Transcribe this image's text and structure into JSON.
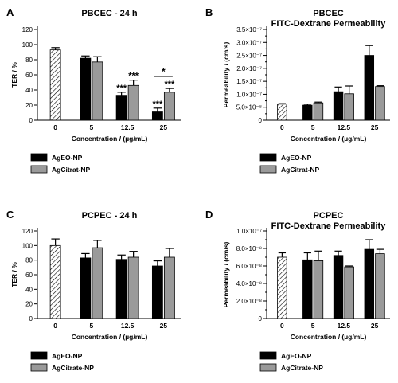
{
  "chart_data": [
    {
      "type": "bar",
      "panel": "A",
      "title": "PBCEC - 24 h",
      "title2": "",
      "xlabel": "Concentration / (µg/mL)",
      "ylabel": "TER / %",
      "ylim": [
        0,
        120
      ],
      "yticks": [
        "0",
        "20",
        "40",
        "60",
        "80",
        "100",
        "120"
      ],
      "categories": [
        "0",
        "5",
        "12.5",
        "25"
      ],
      "control": {
        "value": 93,
        "error": 3
      },
      "series": [
        {
          "name": "AgEO-NP",
          "color": "#000000",
          "values": [
            null,
            82,
            33,
            11
          ],
          "errors": [
            null,
            3,
            4,
            5
          ]
        },
        {
          "name": "AgCitrat-NP",
          "color": "#9a9a9a",
          "values": [
            null,
            77,
            46,
            37
          ],
          "errors": [
            null,
            7,
            7,
            5
          ]
        }
      ],
      "annotations": [
        {
          "text": "***",
          "category": "12.5",
          "series": 0
        },
        {
          "text": "***",
          "category": "12.5",
          "series": 1
        },
        {
          "text": "***",
          "category": "25",
          "series": 0
        },
        {
          "text": "***",
          "category": "25",
          "series": 1
        },
        {
          "text": "*",
          "category": "25",
          "bracket": true,
          "y": 58
        }
      ]
    },
    {
      "type": "bar",
      "panel": "B",
      "title": "PBCEC",
      "title2": "FITC-Dextrane Permeability",
      "xlabel": "Concentration / (µg/mL)",
      "ylabel": "Permeability / (cm/s)",
      "ylim": [
        0,
        3.5e-07
      ],
      "yticks": [
        "0",
        "5.0×10⁻⁸",
        "1.0×10⁻⁷",
        "1.5×10⁻⁷",
        "2.0×10⁻⁷",
        "2.5×10⁻⁷",
        "3.0×10⁻⁷",
        "3.5×10⁻⁷"
      ],
      "categories": [
        "0",
        "5",
        "12.5",
        "25"
      ],
      "control": {
        "value": 6.2e-08,
        "error": 2e-09
      },
      "series": [
        {
          "name": "AgEO-NP",
          "color": "#000000",
          "values": [
            null,
            5.8e-08,
            1.1e-07,
            2.5e-07
          ],
          "errors": [
            null,
            4e-09,
            1.8e-08,
            3.8e-08
          ]
        },
        {
          "name": "AgCitrat-NP",
          "color": "#9a9a9a",
          "values": [
            null,
            6.7e-08,
            1.02e-07,
            1.3e-07
          ],
          "errors": [
            null,
            3e-09,
            3e-08,
            3e-09
          ]
        }
      ],
      "annotations": []
    },
    {
      "type": "bar",
      "panel": "C",
      "title": "PCPEC - 24 h",
      "title2": "",
      "xlabel": "Concentration / (µg/mL)",
      "ylabel": "TER / %",
      "ylim": [
        0,
        120
      ],
      "yticks": [
        "0",
        "20",
        "40",
        "60",
        "80",
        "100",
        "120"
      ],
      "categories": [
        "0",
        "5",
        "12.5",
        "25"
      ],
      "control": {
        "value": 100,
        "error": 9
      },
      "series": [
        {
          "name": "AgEO-NP",
          "color": "#000000",
          "values": [
            null,
            83,
            81,
            72
          ],
          "errors": [
            null,
            6,
            6,
            7
          ]
        },
        {
          "name": "AgCitrate-NP",
          "color": "#9a9a9a",
          "values": [
            null,
            97,
            84,
            84
          ],
          "errors": [
            null,
            10,
            8,
            12
          ]
        }
      ],
      "annotations": []
    },
    {
      "type": "bar",
      "panel": "D",
      "title": "PCPEC",
      "title2": "FITC-Dextrane Permeability",
      "xlabel": "Concentration / (µg/mL)",
      "ylabel": "Permeability / (cm/s)",
      "ylim": [
        0,
        1e-07
      ],
      "yticks": [
        "0",
        "2.0×10⁻⁸",
        "4.0×10⁻⁸",
        "6.0×10⁻⁸",
        "8.0×10⁻⁸",
        "1.0×10⁻⁷"
      ],
      "categories": [
        "0",
        "5",
        "12.5",
        "25"
      ],
      "control": {
        "value": 7e-08,
        "error": 5e-09
      },
      "series": [
        {
          "name": "AgEO-NP",
          "color": "#000000",
          "values": [
            null,
            6.7e-08,
            7.2e-08,
            7.9e-08
          ],
          "errors": [
            null,
            8e-09,
            5e-09,
            1.1e-08
          ]
        },
        {
          "name": "AgCitrate-NP",
          "color": "#9a9a9a",
          "values": [
            null,
            6.6e-08,
            5.9e-08,
            7.4e-08
          ],
          "errors": [
            null,
            1.1e-08,
            1e-09,
            5e-09
          ]
        }
      ],
      "annotations": []
    }
  ]
}
